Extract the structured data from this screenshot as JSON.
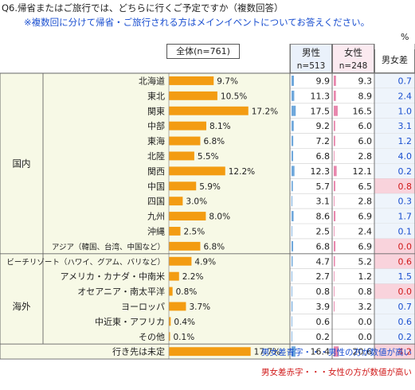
{
  "question": "Q6.帰省またはご旅行では、どちらに行くご予定ですか（複数回答）",
  "note": "※複数回に分けて帰省・ご旅行される方はメインイベントについてお答えください。",
  "unit": "%",
  "total_label": "全体(n=761)",
  "headers": {
    "male": "男性",
    "male_n": "n=513",
    "female": "女性",
    "female_n": "n=248",
    "diff": "男女差"
  },
  "legend": {
    "blue": "男女差青字・・・男性の方が数値が高い",
    "red": "男女差赤字・・・女性の方が数値が高い"
  },
  "colors": {
    "bar": "#f39c12",
    "male_bar": "#6fa8dc",
    "female_bar": "#e887ad",
    "blue_text": "#1a4fd0",
    "red_text": "#d01a1a",
    "group_bg": "#f7f9e6",
    "pink_cell": "#f9d3dc",
    "blue_cell": "#eef4fb"
  },
  "chart_data": {
    "type": "bar",
    "groups": [
      {
        "name": "国内",
        "rows": [
          0,
          11
        ]
      },
      {
        "name": "海外",
        "rows": [
          12,
          18
        ]
      }
    ],
    "categories": [
      "北海道",
      "東北",
      "関東",
      "中部",
      "東海",
      "北陸",
      "関西",
      "中国",
      "四国",
      "九州",
      "沖縄",
      "アジア（韓国、台湾、中国など）",
      "ビーチリゾート（ハワイ、グアム、バリなど）",
      "アメリカ・カナダ・中南米",
      "オセアニア・南太平洋",
      "ヨーロッパ",
      "中近東・アフリカ",
      "その他",
      "行き先は未定"
    ],
    "total": [
      9.7,
      10.5,
      17.2,
      8.1,
      6.8,
      5.5,
      12.2,
      5.9,
      3.0,
      8.0,
      2.5,
      6.8,
      4.9,
      2.2,
      0.8,
      3.7,
      0.4,
      0.1,
      17.7
    ],
    "total_labels": [
      "9.7%",
      "10.5%",
      "17.2%",
      "8.1%",
      "6.8%",
      "5.5%",
      "12.2%",
      "5.9%",
      "3.0%",
      "8.0%",
      "2.5%",
      "6.8%",
      "4.9%",
      "2.2%",
      "0.8%",
      "3.7%",
      "0.4%",
      "0.1%",
      "17.7%"
    ],
    "male": [
      "9.9",
      "11.3",
      "17.5",
      "9.2",
      "7.2",
      "6.8",
      "12.3",
      "5.7",
      "3.1",
      "8.6",
      "2.5",
      "6.8",
      "4.7",
      "2.7",
      "0.8",
      "3.9",
      "0.6",
      "0.2",
      "16.4"
    ],
    "female": [
      "9.3",
      "8.9",
      "16.5",
      "6.0",
      "6.0",
      "2.8",
      "12.1",
      "6.5",
      "2.8",
      "6.9",
      "2.4",
      "6.9",
      "5.2",
      "1.2",
      "0.8",
      "3.2",
      "0.0",
      "0.0",
      "20.6"
    ],
    "diff": [
      "0.7",
      "2.4",
      "1.0",
      "3.1",
      "1.2",
      "4.0",
      "0.2",
      "0.8",
      "0.3",
      "1.7",
      "0.1",
      "0.0",
      "0.6",
      "1.5",
      "0.0",
      "0.7",
      "0.6",
      "0.2",
      "4.2"
    ],
    "diff_sign": [
      "m",
      "m",
      "m",
      "m",
      "m",
      "m",
      "m",
      "f",
      "m",
      "m",
      "m",
      "f",
      "f",
      "m",
      "f",
      "m",
      "m",
      "m",
      "f"
    ]
  }
}
